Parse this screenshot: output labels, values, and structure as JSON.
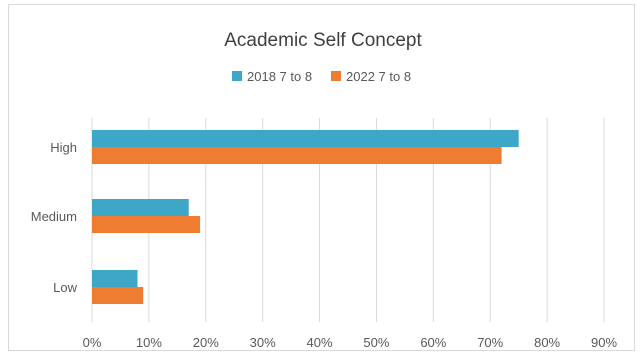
{
  "chart_data": {
    "type": "bar",
    "orientation": "horizontal",
    "title": "Academic Self Concept",
    "categories": [
      "High",
      "Medium",
      "Low"
    ],
    "series": [
      {
        "name": "2018 7 to 8",
        "values": [
          75,
          17,
          8
        ],
        "color": "#3ea6c6"
      },
      {
        "name": "2022 7 to 8",
        "values": [
          72,
          19,
          9
        ],
        "color": "#ee7d31"
      }
    ],
    "xlim": [
      0,
      90
    ],
    "xticks": [
      0,
      10,
      20,
      30,
      40,
      50,
      60,
      70,
      80,
      90
    ],
    "x_tick_labels": [
      "0%",
      "10%",
      "20%",
      "30%",
      "40%",
      "50%",
      "60%",
      "70%",
      "80%",
      "90%"
    ],
    "legend_position": "top",
    "grid": "vertical"
  }
}
